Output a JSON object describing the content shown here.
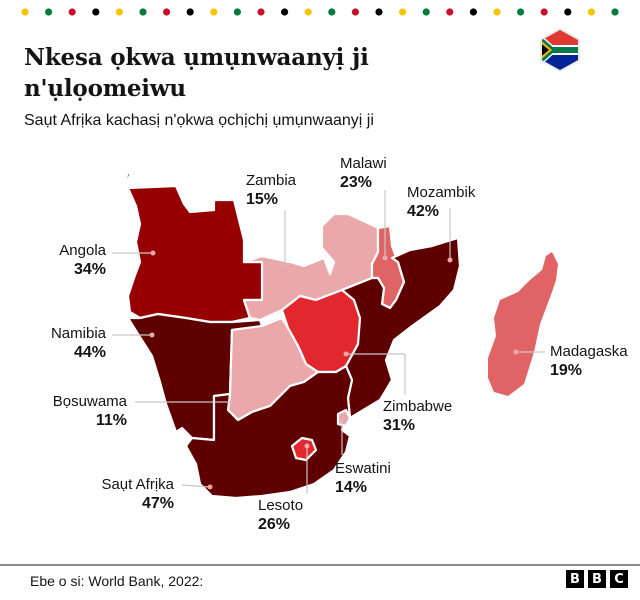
{
  "header": {
    "title": "Nkesa ọkwa ụmụnwaanyị ji n'ụlọomeiwu",
    "subtitle": "Saụt Afrịka kachasị n'ọkwa ọchịchị ụmụnwaanyị ji",
    "flag_icon": "south-africa-flag-icon"
  },
  "decor": {
    "dot_colors": [
      "#f6c500",
      "#007a3d",
      "#c8102e",
      "#000000"
    ],
    "dot_count": 26
  },
  "colors": {
    "very_high": "#5e0000",
    "high": "#960000",
    "mid": "#e0282e",
    "mid_low": "#e06466",
    "low": "#eaa8aa",
    "border": "#ffffff",
    "leader": "#c8c8c8"
  },
  "chart_data": {
    "type": "choropleth-map",
    "title": "Nkesa ọkwa ụmụnwaanyị ji n'ụlọomeiwu",
    "subtitle": "Saụt Afrịka kachasị n'ọkwa ọchịchị ụmụnwaanyị ji",
    "unit": "%",
    "regions": [
      {
        "name": "Angola",
        "value": 34
      },
      {
        "name": "Zambia",
        "value": 15
      },
      {
        "name": "Malawi",
        "value": 23
      },
      {
        "name": "Mozambik",
        "value": 42
      },
      {
        "name": "Namibia",
        "value": 44
      },
      {
        "name": "Bọsuwama",
        "value": 11
      },
      {
        "name": "Zimbabwe",
        "value": 31
      },
      {
        "name": "Madagaska",
        "value": 19
      },
      {
        "name": "Saụt Afrịka",
        "value": 47
      },
      {
        "name": "Eswatini",
        "value": 14
      },
      {
        "name": "Lesoto",
        "value": 26
      }
    ],
    "source": "World Bank, 2022"
  },
  "labels": {
    "angola": {
      "name": "Angola",
      "pct": "34%"
    },
    "zambia": {
      "name": "Zambia",
      "pct": "15%"
    },
    "malawi": {
      "name": "Malawi",
      "pct": "23%"
    },
    "mozambik": {
      "name": "Mozambik",
      "pct": "42%"
    },
    "namibia": {
      "name": "Namibia",
      "pct": "44%"
    },
    "bosuwama": {
      "name": "Bọsuwama",
      "pct": "11%"
    },
    "zimbabwe": {
      "name": "Zimbabwe",
      "pct": "31%"
    },
    "madagaska": {
      "name": "Madagaska",
      "pct": "19%"
    },
    "saut_afrika": {
      "name": "Saụt Afrịka",
      "pct": "47%"
    },
    "eswatini": {
      "name": "Eswatini",
      "pct": "14%"
    },
    "lesoto": {
      "name": "Lesoto",
      "pct": "26%"
    }
  },
  "footer": {
    "source": "Ebe o si: World Bank, 2022:",
    "logo_letters": [
      "B",
      "B",
      "C"
    ]
  }
}
